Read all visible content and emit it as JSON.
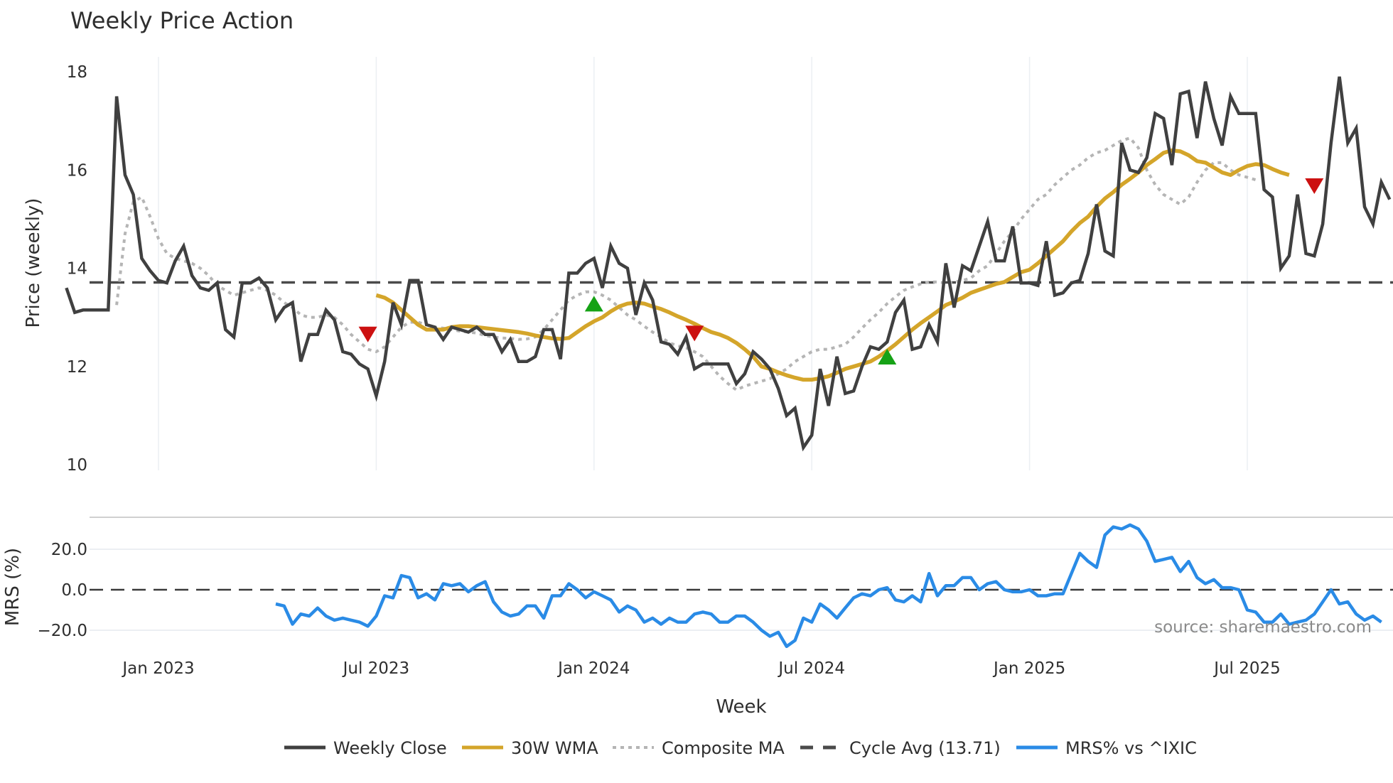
{
  "title": "Weekly Price Action",
  "source_note": "source: sharemaestro.com",
  "colors": {
    "weekly_close": "#404040",
    "wma": "#d4a52a",
    "composite": "#b5b5b5",
    "cycle_avg": "#4a4a4a",
    "mrs": "#2a8be6",
    "buy_marker": "#16a216",
    "sell_marker": "#cc1111",
    "grid": "#eceff3",
    "separator": "#d0d0d0"
  },
  "legend": [
    {
      "key": "weekly_close",
      "label": "Weekly Close",
      "style": "solid"
    },
    {
      "key": "wma",
      "label": "30W WMA",
      "style": "solid"
    },
    {
      "key": "composite",
      "label": "Composite MA",
      "style": "dotted"
    },
    {
      "key": "cycle_avg",
      "label": "Cycle Avg (13.71)",
      "style": "dashed"
    },
    {
      "key": "mrs",
      "label": "MRS% vs ^IXIC",
      "style": "solid"
    }
  ],
  "chart_data": [
    {
      "type": "line",
      "title": "Weekly Price Action",
      "xlabel": "Week",
      "ylabel": "Price (weekly)",
      "ylim": [
        10,
        18.3
      ],
      "yticks": [
        10,
        12,
        14,
        16,
        18
      ],
      "x_tick_labels": [
        "Jan 2023",
        "Jul 2023",
        "Jan 2024",
        "Jul 2024",
        "Jan 2025",
        "Jul 2025"
      ],
      "x_tick_week_index": [
        11,
        37,
        63,
        89,
        115,
        141
      ],
      "grid": "vertical",
      "cycle_avg": 13.71,
      "series": [
        {
          "name": "Weekly Close",
          "start_index": 0,
          "values": [
            13.6,
            13.1,
            13.15,
            13.15,
            13.15,
            13.15,
            17.5,
            15.9,
            15.5,
            14.2,
            13.95,
            13.75,
            13.7,
            14.15,
            14.45,
            13.85,
            13.6,
            13.55,
            13.7,
            12.75,
            12.6,
            13.7,
            13.7,
            13.8,
            13.6,
            12.95,
            13.2,
            13.3,
            12.1,
            12.65,
            12.65,
            13.15,
            12.95,
            12.3,
            12.25,
            12.05,
            11.95,
            11.4,
            12.1,
            13.3,
            12.85,
            13.75,
            13.75,
            12.85,
            12.8,
            12.55,
            12.8,
            12.75,
            12.7,
            12.8,
            12.65,
            12.65,
            12.3,
            12.55,
            12.1,
            12.1,
            12.2,
            12.75,
            12.75,
            12.15,
            13.9,
            13.9,
            14.1,
            14.2,
            13.6,
            14.45,
            14.1,
            14.0,
            13.05,
            13.7,
            13.35,
            12.5,
            12.45,
            12.25,
            12.6,
            11.95,
            12.05,
            12.05,
            12.05,
            12.05,
            11.65,
            11.85,
            12.3,
            12.15,
            11.95,
            11.55,
            11.0,
            11.15,
            10.35,
            10.6,
            11.95,
            11.2,
            12.2,
            11.45,
            11.5,
            12.0,
            12.4,
            12.35,
            12.5,
            13.1,
            13.35,
            12.35,
            12.4,
            12.85,
            12.5,
            14.1,
            13.2,
            14.05,
            13.95,
            14.45,
            14.95,
            14.15,
            14.15,
            14.85,
            13.7,
            13.7,
            13.65,
            14.55,
            13.45,
            13.5,
            13.7,
            13.75,
            14.3,
            15.3,
            14.35,
            14.25,
            16.55,
            16.0,
            15.95,
            16.25,
            17.15,
            17.05,
            16.1,
            17.55,
            17.6,
            16.65,
            17.8,
            17.05,
            16.5,
            17.5,
            17.15,
            17.15,
            17.15,
            15.6,
            15.45,
            14.0,
            14.25,
            15.5,
            14.3,
            14.25,
            14.9,
            16.55,
            17.9,
            16.55,
            16.85,
            15.25,
            14.9,
            15.75,
            15.4
          ]
        },
        {
          "name": "30W WMA",
          "start_index": 37,
          "values": [
            13.45,
            13.4,
            13.3,
            13.15,
            13.0,
            12.85,
            12.75,
            12.75,
            12.75,
            12.8,
            12.82,
            12.82,
            12.8,
            12.78,
            12.76,
            12.74,
            12.72,
            12.7,
            12.67,
            12.63,
            12.6,
            12.57,
            12.56,
            12.58,
            12.7,
            12.82,
            12.92,
            13.0,
            13.12,
            13.22,
            13.28,
            13.3,
            13.28,
            13.22,
            13.17,
            13.1,
            13.02,
            12.95,
            12.87,
            12.78,
            12.7,
            12.65,
            12.58,
            12.48,
            12.35,
            12.2,
            12.0,
            11.95,
            11.88,
            11.82,
            11.77,
            11.73,
            11.73,
            11.76,
            11.8,
            11.87,
            11.95,
            12.0,
            12.05,
            12.1,
            12.2,
            12.32,
            12.45,
            12.6,
            12.75,
            12.88,
            13.0,
            13.12,
            13.25,
            13.32,
            13.4,
            13.5,
            13.56,
            13.62,
            13.68,
            13.72,
            13.82,
            13.92,
            13.97,
            14.1,
            14.25,
            14.4,
            14.55,
            14.75,
            14.92,
            15.05,
            15.25,
            15.42,
            15.55,
            15.7,
            15.82,
            15.95,
            16.1,
            16.22,
            16.35,
            16.4,
            16.38,
            16.3,
            16.18,
            16.15,
            16.05,
            15.95,
            15.9,
            16.0,
            16.08,
            16.12,
            16.1,
            16.02,
            15.95,
            15.9
          ]
        },
        {
          "name": "Composite MA",
          "start_index": 6,
          "values": [
            13.25,
            14.7,
            15.35,
            15.45,
            15.05,
            14.6,
            14.3,
            14.2,
            14.15,
            14.1,
            14.0,
            13.85,
            13.65,
            13.55,
            13.45,
            13.5,
            13.55,
            13.6,
            13.55,
            13.45,
            13.3,
            13.2,
            13.05,
            13.0,
            13.0,
            13.05,
            13.0,
            12.85,
            12.65,
            12.5,
            12.35,
            12.3,
            12.4,
            12.6,
            12.8,
            12.9,
            12.9,
            12.85,
            12.8,
            12.78,
            12.75,
            12.72,
            12.7,
            12.68,
            12.63,
            12.6,
            12.58,
            12.57,
            12.55,
            12.56,
            12.6,
            12.75,
            12.95,
            13.15,
            13.35,
            13.45,
            13.52,
            13.52,
            13.45,
            13.35,
            13.2,
            13.05,
            12.95,
            12.82,
            12.7,
            12.6,
            12.48,
            12.42,
            12.38,
            12.3,
            12.2,
            12.0,
            11.8,
            11.65,
            11.52,
            11.6,
            11.65,
            11.7,
            11.75,
            11.85,
            11.95,
            12.1,
            12.2,
            12.3,
            12.35,
            12.35,
            12.4,
            12.45,
            12.6,
            12.78,
            12.95,
            13.1,
            13.28,
            13.42,
            13.55,
            13.62,
            13.68,
            13.72,
            13.72,
            13.7,
            13.72,
            13.75,
            13.8,
            13.95,
            14.05,
            14.3,
            14.55,
            14.75,
            15.0,
            15.2,
            15.4,
            15.5,
            15.7,
            15.85,
            16.0,
            16.1,
            16.25,
            16.35,
            16.4,
            16.5,
            16.6,
            16.65,
            16.45,
            16.0,
            15.7,
            15.5,
            15.4,
            15.3,
            15.45,
            15.75,
            16.0,
            16.15,
            16.15,
            16.0,
            15.9,
            15.85,
            15.8
          ]
        },
        {
          "name": "Cycle Avg (13.71)",
          "constant": 13.71
        }
      ],
      "markers": [
        {
          "type": "sell",
          "shape": "down-triangle",
          "week_index": 36,
          "value": 12.68
        },
        {
          "type": "buy",
          "shape": "up-triangle",
          "week_index": 63,
          "value": 13.25
        },
        {
          "type": "sell",
          "shape": "down-triangle",
          "week_index": 75,
          "value": 12.7
        },
        {
          "type": "buy",
          "shape": "up-triangle",
          "week_index": 98,
          "value": 12.17
        },
        {
          "type": "sell",
          "shape": "down-triangle",
          "week_index": 149,
          "value": 15.7
        }
      ]
    },
    {
      "type": "line",
      "ylabel": "MRS (%)",
      "ylim": [
        -24,
        34
      ],
      "yticks": [
        -20.0,
        0.0,
        20.0
      ],
      "ytick_labels": [
        "−20.0",
        "0.0",
        "20.0"
      ],
      "zero_line": 0.0,
      "series": [
        {
          "name": "MRS% vs ^IXIC",
          "start_index": 25,
          "values": [
            -7,
            -8,
            -17,
            -12,
            -13,
            -9,
            -13,
            -15,
            -14,
            -15,
            -16,
            -18,
            -13,
            -3,
            -4,
            7,
            6,
            -4,
            -2,
            -5,
            3,
            2,
            3,
            -1,
            2,
            4,
            -6,
            -11,
            -13,
            -12,
            -8,
            -8,
            -14,
            -3,
            -3,
            3,
            0,
            -4,
            -1,
            -3,
            -5,
            -11,
            -8,
            -10,
            -16,
            -14,
            -17,
            -14,
            -16,
            -16,
            -12,
            -11,
            -12,
            -16,
            -16,
            -13,
            -13,
            -16,
            -20,
            -23,
            -21,
            -28,
            -25,
            -14,
            -16,
            -7,
            -10,
            -14,
            -9,
            -4,
            -2,
            -3,
            0,
            1,
            -5,
            -6,
            -3,
            -6,
            8,
            -3,
            2,
            2,
            6,
            6,
            0,
            3,
            4,
            0,
            -1,
            -1,
            0,
            -3,
            -3,
            -2,
            -2,
            8,
            18,
            14,
            11,
            27,
            31,
            30,
            32,
            30,
            24,
            14,
            15,
            16,
            9,
            14,
            6,
            3,
            5,
            1,
            1,
            0,
            -10,
            -11,
            -16,
            -16,
            -12,
            -17,
            -16,
            -15,
            -12,
            -6,
            0,
            -7,
            -6,
            -12,
            -15,
            -13,
            -16
          ]
        }
      ],
      "x_tick_labels": [
        "Jan 2023",
        "Jul 2023",
        "Jan 2024",
        "Jul 2024",
        "Jan 2025",
        "Jul 2025"
      ],
      "xlabel": "Week"
    }
  ]
}
